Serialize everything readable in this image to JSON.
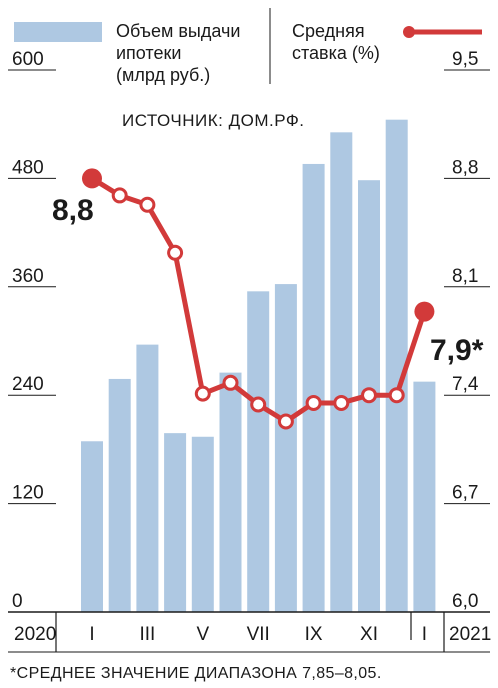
{
  "chart_data": {
    "type": "bar",
    "title": "",
    "source": "ИСТОЧНИК: ДОМ.РФ.",
    "footnote": "*СРЕДНЕЕ ЗНАЧЕНИЕ ДИАПАЗОНА 7,85–8,05.",
    "legend": {
      "bars_label": [
        "Объем выдачи",
        "ипотеки",
        "(млрд руб.)"
      ],
      "line_label": [
        "Средняя",
        "ставка (%)"
      ],
      "placement": "top"
    },
    "colors": {
      "bar": "#aec8e2",
      "line": "#d23a3a",
      "axis": "#1a1a1a"
    },
    "left_axis": {
      "ticks": [
        "600",
        "480",
        "360",
        "240",
        "120",
        "0"
      ],
      "ylim": [
        0,
        600
      ]
    },
    "right_axis": {
      "ticks": [
        "9,5",
        "8,8",
        "8,1",
        "7,4",
        "6,7",
        "6,0"
      ],
      "ylim": [
        6.0,
        9.5
      ]
    },
    "x_axis": {
      "left_year": "2020",
      "right_year": "2021",
      "labels": [
        {
          "index": 0,
          "label": "I"
        },
        {
          "index": 2,
          "label": "III"
        },
        {
          "index": 4,
          "label": "V"
        },
        {
          "index": 6,
          "label": "VII"
        },
        {
          "index": 8,
          "label": "IX"
        },
        {
          "index": 10,
          "label": "XI"
        },
        {
          "index": 12,
          "label": "I"
        }
      ]
    },
    "series": [
      {
        "name": "Объем выдачи ипотеки",
        "type": "bar",
        "axis": "left",
        "values": [
          189,
          258,
          296,
          198,
          194,
          265,
          355,
          363,
          496,
          531,
          478,
          545,
          255
        ]
      },
      {
        "name": "Средняя ставка",
        "type": "line",
        "axis": "right",
        "values": [
          8.8,
          8.69,
          8.63,
          8.32,
          7.41,
          7.48,
          7.34,
          7.23,
          7.35,
          7.35,
          7.4,
          7.4,
          7.94
        ]
      }
    ],
    "callouts": [
      {
        "index": 0,
        "text": "8,8"
      },
      {
        "index": 12,
        "text": "7,9*"
      }
    ]
  }
}
